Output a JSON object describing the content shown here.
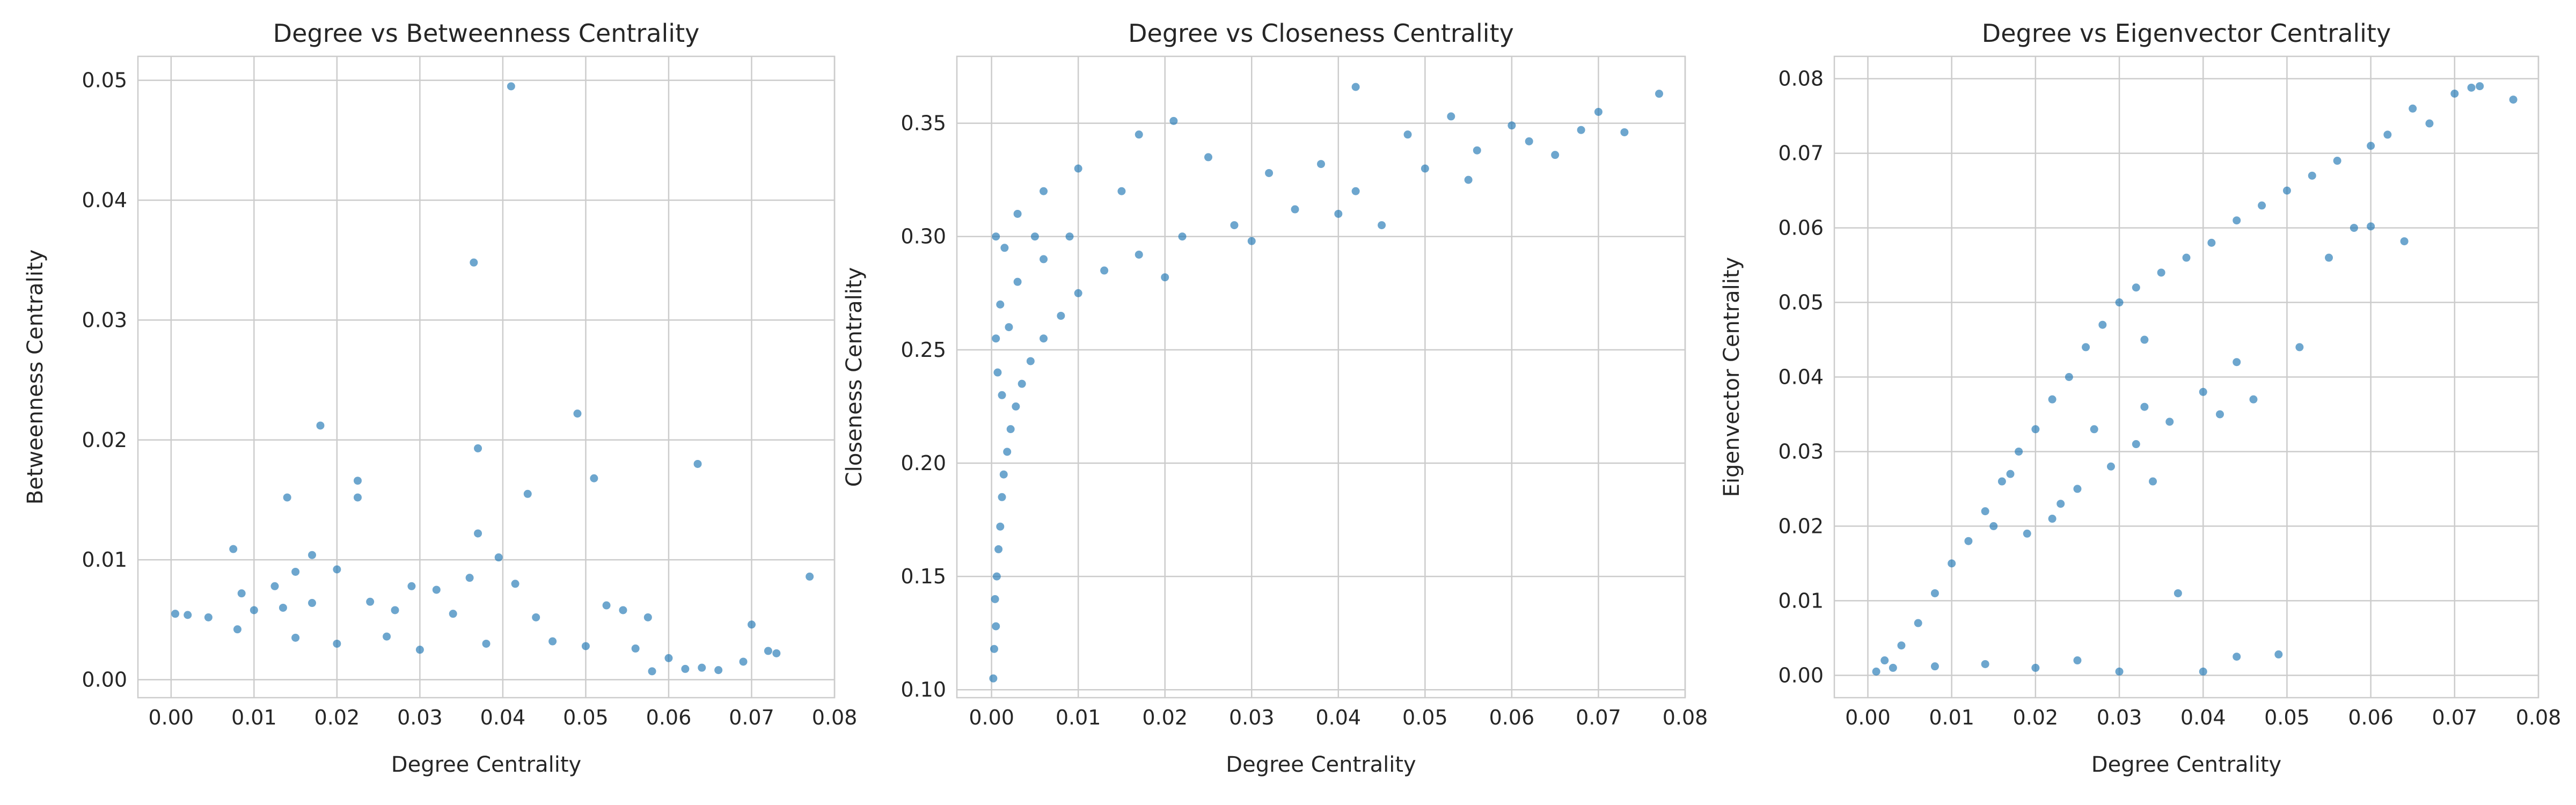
{
  "colors": {
    "marker": "#1f77b4",
    "grid": "#cccccc",
    "text": "#262626",
    "background": "#ffffff"
  },
  "chart_data": [
    {
      "type": "scatter",
      "title": "Degree vs Betweenness Centrality",
      "xlabel": "Degree Centrality",
      "ylabel": "Betweenness Centrality",
      "xlim": [
        -0.004,
        0.08
      ],
      "ylim": [
        -0.0015,
        0.052
      ],
      "xticks": [
        "0.00",
        "0.01",
        "0.02",
        "0.03",
        "0.04",
        "0.05",
        "0.06",
        "0.07",
        "0.08"
      ],
      "xtick_values": [
        0,
        0.01,
        0.02,
        0.03,
        0.04,
        0.05,
        0.06,
        0.07,
        0.08
      ],
      "yticks": [
        "0.00",
        "0.01",
        "0.02",
        "0.03",
        "0.04",
        "0.05"
      ],
      "ytick_values": [
        0,
        0.01,
        0.02,
        0.03,
        0.04,
        0.05
      ],
      "grid": true,
      "series": [
        {
          "points": [
            [
              0.041,
              0.0495
            ],
            [
              0.0365,
              0.0348
            ],
            [
              0.049,
              0.0222
            ],
            [
              0.018,
              0.0212
            ],
            [
              0.037,
              0.0193
            ],
            [
              0.0635,
              0.018
            ],
            [
              0.0225,
              0.0166
            ],
            [
              0.051,
              0.0168
            ],
            [
              0.0225,
              0.0152
            ],
            [
              0.043,
              0.0155
            ],
            [
              0.014,
              0.0152
            ],
            [
              0.037,
              0.0122
            ],
            [
              0.0075,
              0.0109
            ],
            [
              0.0395,
              0.0102
            ],
            [
              0.017,
              0.0104
            ],
            [
              0.077,
              0.0086
            ],
            [
              0.015,
              0.009
            ],
            [
              0.02,
              0.0092
            ],
            [
              0.0125,
              0.0078
            ],
            [
              0.029,
              0.0078
            ],
            [
              0.032,
              0.0075
            ],
            [
              0.0085,
              0.0072
            ],
            [
              0.036,
              0.0085
            ],
            [
              0.0415,
              0.008
            ],
            [
              0.0525,
              0.0062
            ],
            [
              0.0005,
              0.0055
            ],
            [
              0.002,
              0.0054
            ],
            [
              0.0045,
              0.0052
            ],
            [
              0.01,
              0.0058
            ],
            [
              0.0135,
              0.006
            ],
            [
              0.017,
              0.0064
            ],
            [
              0.024,
              0.0065
            ],
            [
              0.027,
              0.0058
            ],
            [
              0.034,
              0.0055
            ],
            [
              0.044,
              0.0052
            ],
            [
              0.0545,
              0.0058
            ],
            [
              0.0575,
              0.0052
            ],
            [
              0.07,
              0.0046
            ],
            [
              0.072,
              0.0024
            ],
            [
              0.073,
              0.0022
            ],
            [
              0.008,
              0.0042
            ],
            [
              0.015,
              0.0035
            ],
            [
              0.02,
              0.003
            ],
            [
              0.026,
              0.0036
            ],
            [
              0.03,
              0.0025
            ],
            [
              0.038,
              0.003
            ],
            [
              0.046,
              0.0032
            ],
            [
              0.05,
              0.0028
            ],
            [
              0.056,
              0.0026
            ],
            [
              0.06,
              0.0018
            ],
            [
              0.064,
              0.001
            ],
            [
              0.066,
              0.0008
            ],
            [
              0.069,
              0.0015
            ],
            [
              0.062,
              0.0009
            ],
            [
              0.058,
              0.0007
            ]
          ]
        }
      ]
    },
    {
      "type": "scatter",
      "title": "Degree vs Closeness Centrality",
      "xlabel": "Degree Centrality",
      "ylabel": "Closeness Centrality",
      "xlim": [
        -0.004,
        0.08
      ],
      "ylim": [
        0.0965,
        0.3795
      ],
      "xticks": [
        "0.00",
        "0.01",
        "0.02",
        "0.03",
        "0.04",
        "0.05",
        "0.06",
        "0.07",
        "0.08"
      ],
      "xtick_values": [
        0,
        0.01,
        0.02,
        0.03,
        0.04,
        0.05,
        0.06,
        0.07,
        0.08
      ],
      "yticks": [
        "0.10",
        "0.15",
        "0.20",
        "0.25",
        "0.30",
        "0.35"
      ],
      "ytick_values": [
        0.1,
        0.15,
        0.2,
        0.25,
        0.3,
        0.35
      ],
      "grid": true,
      "series": [
        {
          "points": [
            [
              0.0002,
              0.105
            ],
            [
              0.0003,
              0.118
            ],
            [
              0.0005,
              0.128
            ],
            [
              0.0004,
              0.14
            ],
            [
              0.0006,
              0.15
            ],
            [
              0.0008,
              0.162
            ],
            [
              0.001,
              0.172
            ],
            [
              0.0012,
              0.185
            ],
            [
              0.0014,
              0.195
            ],
            [
              0.0018,
              0.205
            ],
            [
              0.0022,
              0.215
            ],
            [
              0.0028,
              0.225
            ],
            [
              0.0035,
              0.235
            ],
            [
              0.0045,
              0.245
            ],
            [
              0.006,
              0.255
            ],
            [
              0.008,
              0.265
            ],
            [
              0.01,
              0.275
            ],
            [
              0.013,
              0.285
            ],
            [
              0.017,
              0.292
            ],
            [
              0.022,
              0.3
            ],
            [
              0.028,
              0.305
            ],
            [
              0.035,
              0.312
            ],
            [
              0.042,
              0.32
            ],
            [
              0.05,
              0.33
            ],
            [
              0.056,
              0.338
            ],
            [
              0.062,
              0.342
            ],
            [
              0.068,
              0.347
            ],
            [
              0.073,
              0.346
            ],
            [
              0.077,
              0.363
            ],
            [
              0.042,
              0.366
            ],
            [
              0.07,
              0.355
            ],
            [
              0.021,
              0.351
            ],
            [
              0.017,
              0.345
            ],
            [
              0.053,
              0.353
            ],
            [
              0.06,
              0.349
            ],
            [
              0.006,
              0.32
            ],
            [
              0.01,
              0.33
            ],
            [
              0.015,
              0.32
            ],
            [
              0.025,
              0.335
            ],
            [
              0.032,
              0.328
            ],
            [
              0.0005,
              0.3
            ],
            [
              0.0015,
              0.295
            ],
            [
              0.003,
              0.31
            ],
            [
              0.009,
              0.3
            ],
            [
              0.006,
              0.29
            ],
            [
              0.001,
              0.27
            ],
            [
              0.0005,
              0.255
            ],
            [
              0.002,
              0.26
            ],
            [
              0.0007,
              0.24
            ],
            [
              0.0012,
              0.23
            ],
            [
              0.003,
              0.28
            ],
            [
              0.005,
              0.3
            ],
            [
              0.02,
              0.282
            ],
            [
              0.03,
              0.298
            ],
            [
              0.04,
              0.31
            ],
            [
              0.045,
              0.305
            ],
            [
              0.055,
              0.325
            ],
            [
              0.065,
              0.336
            ],
            [
              0.038,
              0.332
            ],
            [
              0.048,
              0.345
            ]
          ]
        }
      ]
    },
    {
      "type": "scatter",
      "title": "Degree vs Eigenvector Centrality",
      "xlabel": "Degree Centrality",
      "ylabel": "Eigenvector Centrality",
      "xlim": [
        -0.004,
        0.08
      ],
      "ylim": [
        -0.003,
        0.083
      ],
      "xticks": [
        "0.00",
        "0.01",
        "0.02",
        "0.03",
        "0.04",
        "0.05",
        "0.06",
        "0.07",
        "0.08"
      ],
      "xtick_values": [
        0,
        0.01,
        0.02,
        0.03,
        0.04,
        0.05,
        0.06,
        0.07,
        0.08
      ],
      "yticks": [
        "0.00",
        "0.01",
        "0.02",
        "0.03",
        "0.04",
        "0.05",
        "0.06",
        "0.07",
        "0.08"
      ],
      "ytick_values": [
        0,
        0.01,
        0.02,
        0.03,
        0.04,
        0.05,
        0.06,
        0.07,
        0.08
      ],
      "grid": true,
      "series": [
        {
          "points": [
            [
              0.073,
              0.079
            ],
            [
              0.072,
              0.0788
            ],
            [
              0.077,
              0.0772
            ],
            [
              0.07,
              0.078
            ],
            [
              0.067,
              0.074
            ],
            [
              0.065,
              0.076
            ],
            [
              0.062,
              0.0725
            ],
            [
              0.06,
              0.071
            ],
            [
              0.056,
              0.069
            ],
            [
              0.053,
              0.067
            ],
            [
              0.05,
              0.065
            ],
            [
              0.047,
              0.063
            ],
            [
              0.044,
              0.061
            ],
            [
              0.041,
              0.058
            ],
            [
              0.038,
              0.056
            ],
            [
              0.035,
              0.054
            ],
            [
              0.032,
              0.052
            ],
            [
              0.03,
              0.05
            ],
            [
              0.028,
              0.047
            ],
            [
              0.026,
              0.044
            ],
            [
              0.024,
              0.04
            ],
            [
              0.022,
              0.037
            ],
            [
              0.02,
              0.033
            ],
            [
              0.018,
              0.03
            ],
            [
              0.016,
              0.026
            ],
            [
              0.014,
              0.022
            ],
            [
              0.012,
              0.018
            ],
            [
              0.01,
              0.015
            ],
            [
              0.008,
              0.011
            ],
            [
              0.006,
              0.007
            ],
            [
              0.004,
              0.004
            ],
            [
              0.002,
              0.002
            ],
            [
              0.001,
              0.0005
            ],
            [
              0.003,
              0.001
            ],
            [
              0.008,
              0.0012
            ],
            [
              0.014,
              0.0015
            ],
            [
              0.02,
              0.001
            ],
            [
              0.025,
              0.002
            ],
            [
              0.03,
              0.0005
            ],
            [
              0.037,
              0.011
            ],
            [
              0.04,
              0.0005
            ],
            [
              0.044,
              0.0025
            ],
            [
              0.049,
              0.0028
            ],
            [
              0.0515,
              0.044
            ],
            [
              0.064,
              0.0582
            ],
            [
              0.06,
              0.0602
            ],
            [
              0.033,
              0.045
            ],
            [
              0.044,
              0.042
            ],
            [
              0.04,
              0.038
            ],
            [
              0.036,
              0.034
            ],
            [
              0.032,
              0.031
            ],
            [
              0.029,
              0.028
            ],
            [
              0.025,
              0.025
            ],
            [
              0.022,
              0.021
            ],
            [
              0.019,
              0.019
            ],
            [
              0.017,
              0.027
            ],
            [
              0.015,
              0.02
            ],
            [
              0.023,
              0.023
            ],
            [
              0.027,
              0.033
            ],
            [
              0.033,
              0.036
            ],
            [
              0.042,
              0.035
            ],
            [
              0.034,
              0.026
            ],
            [
              0.046,
              0.037
            ],
            [
              0.055,
              0.056
            ],
            [
              0.058,
              0.06
            ]
          ]
        }
      ]
    }
  ]
}
